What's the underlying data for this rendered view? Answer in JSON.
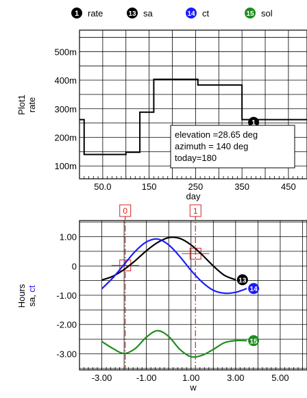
{
  "legend": [
    {
      "num": "1",
      "label": "rate",
      "color": "#000000"
    },
    {
      "num": "13",
      "label": "sa",
      "color": "#000000"
    },
    {
      "num": "14",
      "label": "ct",
      "color": "#1a1aff"
    },
    {
      "num": "15",
      "label": "sol",
      "color": "#1e8c1e"
    }
  ],
  "chart_data": [
    {
      "type": "line",
      "xlabel": "day",
      "ylabel_lines": [
        "Plot1",
        "rate"
      ],
      "xlim": [
        0,
        490
      ],
      "ylim": [
        55,
        575
      ],
      "x_ticks": [
        {
          "v": 50,
          "label": "50.0"
        },
        {
          "v": 150,
          "label": "150"
        },
        {
          "v": 250,
          "label": "250"
        },
        {
          "v": 350,
          "label": "350"
        },
        {
          "v": 450,
          "label": "450"
        }
      ],
      "y_ticks": [
        {
          "v": 100,
          "label": "100m"
        },
        {
          "v": 200,
          "label": "200m"
        },
        {
          "v": 300,
          "label": "300m"
        },
        {
          "v": 400,
          "label": "400m"
        },
        {
          "v": 500,
          "label": "500m"
        }
      ],
      "series": [
        {
          "marker": "1",
          "color": "#000000",
          "step_x": [
            0,
            10,
            100,
            130,
            160,
            255,
            350,
            375,
            490
          ],
          "step_y": [
            262,
            140,
            148,
            288,
            403,
            383,
            262,
            262,
            262
          ],
          "marker_at": {
            "x": 375,
            "y": 262
          }
        }
      ],
      "annotation": [
        "elevation =28.65 deg",
        "azimuth = 140 deg",
        "today=180"
      ]
    },
    {
      "type": "line",
      "xlabel": "w",
      "ylabel_lines": [
        "Hours",
        "sa, ct"
      ],
      "ylabel_colors": {
        "sa": "#000000",
        "ct": "#1a1aff"
      },
      "xlim": [
        -4.0,
        6.2
      ],
      "ylim": [
        -3.55,
        1.55
      ],
      "x_ticks": [
        {
          "v": -3,
          "label": "-3.00"
        },
        {
          "v": -1,
          "label": "-1.00"
        },
        {
          "v": 1,
          "label": "1.00"
        },
        {
          "v": 3,
          "label": "3.00"
        },
        {
          "v": 5,
          "label": "5.00"
        }
      ],
      "y_ticks": [
        {
          "v": 1,
          "label": "1.00"
        },
        {
          "v": 0,
          "label": "0"
        },
        {
          "v": -1,
          "label": "-1.00"
        },
        {
          "v": -2,
          "label": "-2.00"
        },
        {
          "v": -3,
          "label": "-3.00"
        }
      ],
      "series": [
        {
          "name": "sa",
          "marker": "13",
          "color": "#000000",
          "x": [
            -3.0,
            -2.5,
            -2.0,
            -1.5,
            -1.0,
            -0.5,
            0.0,
            0.5,
            1.0,
            1.5,
            2.0,
            2.5,
            3.0
          ],
          "y": [
            -0.48,
            -0.35,
            -0.12,
            0.18,
            0.52,
            0.8,
            0.97,
            0.94,
            0.72,
            0.38,
            0.0,
            -0.32,
            -0.47
          ]
        },
        {
          "name": "ct",
          "marker": "14",
          "color": "#1a1aff",
          "x": [
            -3.0,
            -2.5,
            -2.0,
            -1.5,
            -1.0,
            -0.5,
            0.0,
            0.5,
            1.0,
            1.5,
            2.0,
            2.5,
            3.0,
            3.5
          ],
          "y": [
            -0.78,
            -0.4,
            0.05,
            0.5,
            0.82,
            0.92,
            0.72,
            0.32,
            -0.15,
            -0.55,
            -0.83,
            -0.93,
            -0.9,
            -0.77
          ]
        },
        {
          "name": "sol",
          "marker": "15",
          "color": "#1e8c1e",
          "x": [
            -3.0,
            -2.5,
            -2.0,
            -1.5,
            -1.0,
            -0.5,
            0.0,
            0.5,
            1.0,
            1.5,
            2.0,
            2.5,
            3.0,
            3.5
          ],
          "y": [
            -2.58,
            -2.82,
            -2.99,
            -2.82,
            -2.43,
            -2.21,
            -2.41,
            -2.85,
            -3.1,
            -3.05,
            -2.85,
            -2.62,
            -2.55,
            -2.55
          ]
        }
      ],
      "cursors": [
        {
          "label": "0",
          "x": -1.95,
          "cross_y": 0.02
        },
        {
          "label": "1",
          "x": 1.2,
          "cross_y": 0.42
        }
      ]
    }
  ]
}
